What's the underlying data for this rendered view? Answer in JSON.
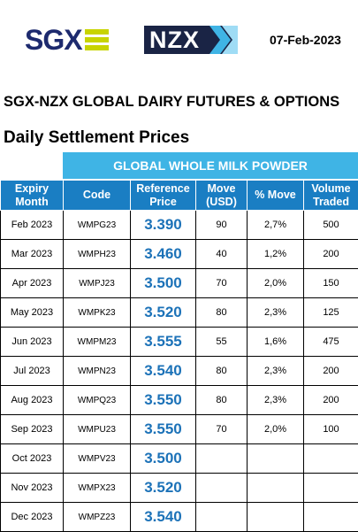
{
  "header": {
    "sgx_logo_text": "SGX",
    "nzx_logo_text": "NZX",
    "date": "07-Feb-2023",
    "banner_title": "SGX-NZX GLOBAL DAIRY FUTURES & OPTIONS",
    "section_title": "Daily Settlement Prices"
  },
  "table": {
    "product": "GLOBAL WHOLE MILK POWDER",
    "columns": {
      "expiry_1": "Expiry",
      "expiry_2": "Month",
      "code": "Code",
      "ref_1": "Reference",
      "ref_2": "Price",
      "move_1": "Move",
      "move_2": "(USD)",
      "pct": "% Move",
      "vol_1": "Volume",
      "vol_2": "Traded"
    },
    "rows": [
      {
        "month": "Feb 2023",
        "code": "WMPG23",
        "price": "3.390",
        "move": "90",
        "pct": "2,7%",
        "volume": "500"
      },
      {
        "month": "Mar 2023",
        "code": "WMPH23",
        "price": "3.460",
        "move": "40",
        "pct": "1,2%",
        "volume": "200"
      },
      {
        "month": "Apr 2023",
        "code": "WMPJ23",
        "price": "3.500",
        "move": "70",
        "pct": "2,0%",
        "volume": "150"
      },
      {
        "month": "May 2023",
        "code": "WMPK23",
        "price": "3.520",
        "move": "80",
        "pct": "2,3%",
        "volume": "125"
      },
      {
        "month": "Jun 2023",
        "code": "WMPM23",
        "price": "3.555",
        "move": "55",
        "pct": "1,6%",
        "volume": "475"
      },
      {
        "month": "Jul 2023",
        "code": "WMPN23",
        "price": "3.540",
        "move": "80",
        "pct": "2,3%",
        "volume": "200"
      },
      {
        "month": "Aug 2023",
        "code": "WMPQ23",
        "price": "3.550",
        "move": "80",
        "pct": "2,3%",
        "volume": "200"
      },
      {
        "month": "Sep 2023",
        "code": "WMPU23",
        "price": "3.550",
        "move": "70",
        "pct": "2,0%",
        "volume": "100"
      },
      {
        "month": "Oct 2023",
        "code": "WMPV23",
        "price": "3.500",
        "move": "",
        "pct": "",
        "volume": ""
      },
      {
        "month": "Nov 2023",
        "code": "WMPX23",
        "price": "3.520",
        "move": "",
        "pct": "",
        "volume": ""
      },
      {
        "month": "Dec 2023",
        "code": "WMPZ23",
        "price": "3.540",
        "move": "",
        "pct": "",
        "volume": ""
      }
    ]
  },
  "colors": {
    "sgx_navy": "#1d2a6e",
    "sgx_lime": "#c8d400",
    "nzx_navy": "#1a2445",
    "header_blue": "#1a7ec3",
    "product_blue": "#3fb4e5",
    "price_blue": "#1c72b8"
  }
}
